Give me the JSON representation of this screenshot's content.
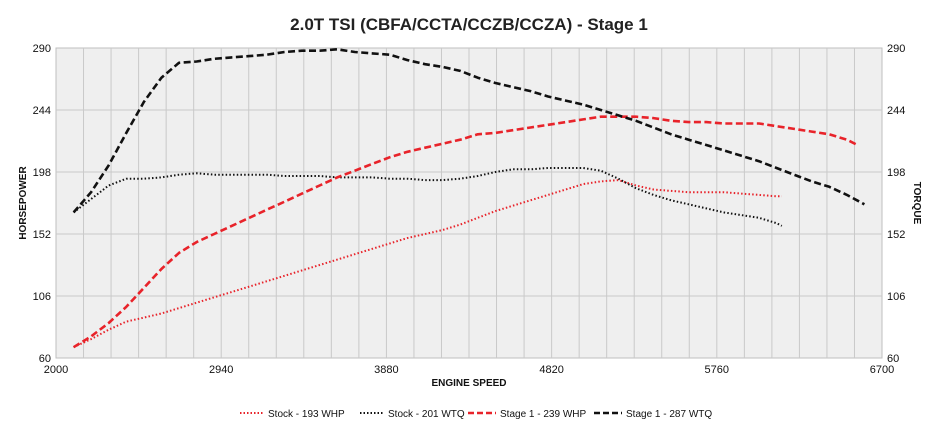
{
  "chart_data": {
    "type": "line",
    "title": "2.0T TSI (CBFA/CCTA/CCZB/CCZA) - Stage 1",
    "xlabel": "ENGINE SPEED",
    "ylabel": "HORSEPOWER",
    "y2label": "TORQUE",
    "xlim": [
      2000,
      6700
    ],
    "ylim": [
      60,
      290
    ],
    "y2lim": [
      60,
      290
    ],
    "xticks": [
      "2000",
      "2940",
      "3880",
      "4820",
      "5760",
      "6700"
    ],
    "yticks": [
      "60",
      "106",
      "152",
      "198",
      "244",
      "290"
    ],
    "grid_x_step": 156.67,
    "legend_position": "bottom",
    "series": [
      {
        "name": "Stock - 193 WHP",
        "color": "#e8232a",
        "style": "dotted",
        "axis": "left",
        "points": [
          [
            2100,
            68
          ],
          [
            2200,
            74
          ],
          [
            2300,
            81
          ],
          [
            2400,
            87
          ],
          [
            2500,
            90
          ],
          [
            2600,
            93
          ],
          [
            2700,
            97
          ],
          [
            2800,
            101
          ],
          [
            2900,
            105
          ],
          [
            3000,
            109
          ],
          [
            3100,
            113
          ],
          [
            3200,
            117
          ],
          [
            3300,
            121
          ],
          [
            3400,
            125
          ],
          [
            3500,
            129
          ],
          [
            3600,
            133
          ],
          [
            3700,
            137
          ],
          [
            3800,
            141
          ],
          [
            3900,
            145
          ],
          [
            4000,
            149
          ],
          [
            4100,
            152
          ],
          [
            4200,
            155
          ],
          [
            4300,
            159
          ],
          [
            4400,
            164
          ],
          [
            4500,
            169
          ],
          [
            4600,
            173
          ],
          [
            4700,
            177
          ],
          [
            4800,
            181
          ],
          [
            4900,
            185
          ],
          [
            5000,
            189
          ],
          [
            5100,
            191
          ],
          [
            5200,
            192
          ],
          [
            5300,
            188
          ],
          [
            5400,
            185
          ],
          [
            5500,
            184
          ],
          [
            5600,
            183
          ],
          [
            5700,
            183
          ],
          [
            5800,
            183
          ],
          [
            5900,
            182
          ],
          [
            6000,
            181
          ],
          [
            6100,
            180
          ],
          [
            6130,
            180
          ]
        ]
      },
      {
        "name": "Stock - 201 WTQ",
        "color": "#111111",
        "style": "dotted",
        "axis": "right",
        "points": [
          [
            2100,
            168
          ],
          [
            2200,
            178
          ],
          [
            2300,
            188
          ],
          [
            2400,
            193
          ],
          [
            2500,
            193
          ],
          [
            2600,
            194
          ],
          [
            2700,
            196
          ],
          [
            2800,
            197
          ],
          [
            2900,
            196
          ],
          [
            3000,
            196
          ],
          [
            3100,
            196
          ],
          [
            3200,
            196
          ],
          [
            3300,
            195
          ],
          [
            3400,
            195
          ],
          [
            3500,
            195
          ],
          [
            3600,
            194
          ],
          [
            3700,
            194
          ],
          [
            3800,
            194
          ],
          [
            3900,
            193
          ],
          [
            4000,
            193
          ],
          [
            4100,
            192
          ],
          [
            4200,
            192
          ],
          [
            4300,
            193
          ],
          [
            4400,
            195
          ],
          [
            4500,
            198
          ],
          [
            4600,
            200
          ],
          [
            4700,
            200
          ],
          [
            4800,
            201
          ],
          [
            4900,
            201
          ],
          [
            5000,
            201
          ],
          [
            5100,
            199
          ],
          [
            5200,
            193
          ],
          [
            5300,
            186
          ],
          [
            5400,
            181
          ],
          [
            5500,
            177
          ],
          [
            5600,
            174
          ],
          [
            5700,
            171
          ],
          [
            5800,
            168
          ],
          [
            5900,
            166
          ],
          [
            6000,
            164
          ],
          [
            6100,
            160
          ],
          [
            6130,
            158
          ]
        ]
      },
      {
        "name": "Stage 1 - 239 WHP",
        "color": "#e8232a",
        "style": "dashed",
        "axis": "left",
        "points": [
          [
            2100,
            68
          ],
          [
            2200,
            76
          ],
          [
            2300,
            86
          ],
          [
            2400,
            98
          ],
          [
            2500,
            112
          ],
          [
            2600,
            126
          ],
          [
            2700,
            138
          ],
          [
            2800,
            146
          ],
          [
            2900,
            152
          ],
          [
            3000,
            158
          ],
          [
            3100,
            164
          ],
          [
            3200,
            170
          ],
          [
            3300,
            176
          ],
          [
            3400,
            182
          ],
          [
            3500,
            188
          ],
          [
            3600,
            194
          ],
          [
            3700,
            199
          ],
          [
            3800,
            204
          ],
          [
            3900,
            209
          ],
          [
            4000,
            213
          ],
          [
            4100,
            216
          ],
          [
            4200,
            219
          ],
          [
            4300,
            222
          ],
          [
            4400,
            226
          ],
          [
            4500,
            227
          ],
          [
            4600,
            229
          ],
          [
            4700,
            231
          ],
          [
            4800,
            233
          ],
          [
            4900,
            235
          ],
          [
            5000,
            237
          ],
          [
            5100,
            239
          ],
          [
            5200,
            239
          ],
          [
            5300,
            239
          ],
          [
            5400,
            238
          ],
          [
            5500,
            236
          ],
          [
            5600,
            235
          ],
          [
            5700,
            235
          ],
          [
            5800,
            234
          ],
          [
            5900,
            234
          ],
          [
            6000,
            234
          ],
          [
            6100,
            232
          ],
          [
            6200,
            230
          ],
          [
            6300,
            228
          ],
          [
            6400,
            226
          ],
          [
            6500,
            222
          ],
          [
            6560,
            218
          ]
        ]
      },
      {
        "name": "Stage 1 - 287 WTQ",
        "color": "#111111",
        "style": "dashed",
        "axis": "right",
        "points": [
          [
            2100,
            168
          ],
          [
            2200,
            183
          ],
          [
            2300,
            203
          ],
          [
            2400,
            227
          ],
          [
            2500,
            250
          ],
          [
            2600,
            268
          ],
          [
            2700,
            279
          ],
          [
            2800,
            280
          ],
          [
            2900,
            282
          ],
          [
            3000,
            283
          ],
          [
            3100,
            284
          ],
          [
            3200,
            285
          ],
          [
            3300,
            287
          ],
          [
            3400,
            288
          ],
          [
            3500,
            288
          ],
          [
            3600,
            289
          ],
          [
            3700,
            287
          ],
          [
            3800,
            286
          ],
          [
            3900,
            285
          ],
          [
            4000,
            281
          ],
          [
            4100,
            278
          ],
          [
            4200,
            276
          ],
          [
            4300,
            273
          ],
          [
            4400,
            268
          ],
          [
            4500,
            264
          ],
          [
            4600,
            261
          ],
          [
            4700,
            258
          ],
          [
            4800,
            254
          ],
          [
            4900,
            251
          ],
          [
            5000,
            248
          ],
          [
            5100,
            244
          ],
          [
            5200,
            240
          ],
          [
            5300,
            236
          ],
          [
            5400,
            231
          ],
          [
            5500,
            226
          ],
          [
            5600,
            222
          ],
          [
            5700,
            218
          ],
          [
            5800,
            214
          ],
          [
            5900,
            210
          ],
          [
            6000,
            206
          ],
          [
            6100,
            201
          ],
          [
            6200,
            196
          ],
          [
            6300,
            191
          ],
          [
            6400,
            187
          ],
          [
            6500,
            181
          ],
          [
            6600,
            174
          ]
        ]
      }
    ]
  }
}
